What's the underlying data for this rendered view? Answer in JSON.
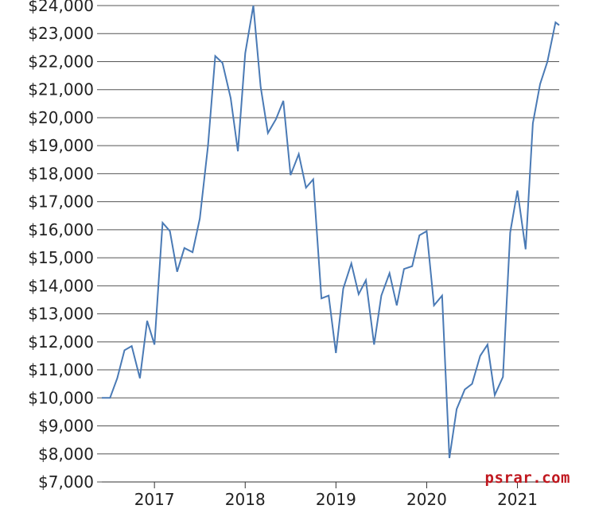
{
  "watermark": "psrar.com",
  "chart_data": {
    "type": "line",
    "title": "",
    "xlabel": "",
    "ylabel": "",
    "y_ticks": [
      "$7,000",
      "$8,000",
      "$9,000",
      "$10,000",
      "$11,000",
      "$12,000",
      "$13,000",
      "$14,000",
      "$15,000",
      "$16,000",
      "$17,000",
      "$18,000",
      "$19,000",
      "$20,000",
      "$21,000",
      "$22,000",
      "$23,000",
      "$24,000"
    ],
    "x_ticks": [
      "2017",
      "2018",
      "2019",
      "2020",
      "2021"
    ],
    "ylim": [
      7000,
      24000
    ],
    "xlim": [
      2016.42,
      2021.46
    ],
    "grid": "horizontal",
    "color": "#4a7ab5",
    "series": [
      {
        "x": [
          2016.42,
          2016.51,
          2016.59,
          2016.67,
          2016.75,
          2016.84,
          2016.92,
          2017.0,
          2017.09,
          2017.17,
          2017.25,
          2017.33,
          2017.42,
          2017.5,
          2017.59,
          2017.67,
          2017.75,
          2017.84,
          2017.92,
          2018.0,
          2018.09,
          2018.17,
          2018.25,
          2018.34,
          2018.42,
          2018.5,
          2018.59,
          2018.67,
          2018.75,
          2018.84,
          2018.92,
          2019.0,
          2019.08,
          2019.17,
          2019.25,
          2019.33,
          2019.42,
          2019.5,
          2019.59,
          2019.67,
          2019.75,
          2019.84,
          2019.92,
          2020.0,
          2020.08,
          2020.17,
          2020.25,
          2020.33,
          2020.42,
          2020.5,
          2020.59,
          2020.67,
          2020.75,
          2020.84,
          2020.92,
          2021.0,
          2021.09,
          2021.17,
          2021.25,
          2021.33,
          2021.42,
          2021.46
        ],
        "values": [
          10000,
          10000,
          10700,
          11700,
          11850,
          10700,
          12750,
          11900,
          16250,
          15950,
          14500,
          15350,
          15200,
          16400,
          19000,
          22200,
          21950,
          20700,
          18800,
          22300,
          24000,
          21100,
          19450,
          19950,
          20600,
          17950,
          18700,
          17500,
          17800,
          13550,
          13650,
          11600,
          13900,
          14800,
          13700,
          14200,
          11900,
          13650,
          14450,
          13300,
          14600,
          14700,
          15800,
          15950,
          13300,
          13650,
          7850,
          9600,
          10300,
          10500,
          11500,
          11900,
          10100,
          10750,
          15900,
          17400,
          15300,
          19800,
          21200,
          22000,
          23400,
          23300
        ]
      }
    ]
  }
}
